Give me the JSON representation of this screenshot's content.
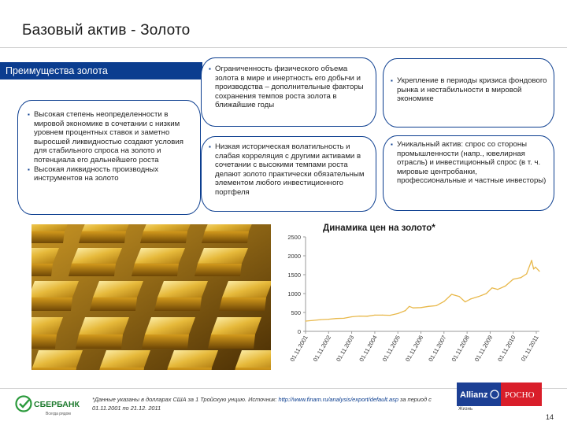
{
  "title": "Базовый актив - Золото",
  "advantages_tab": "Преимущества золота",
  "bubbles": {
    "b1": [
      "Высокая степень неопределенности в мировой экономике в сочетании с низким уровнем процентных ставок и заметно выросшей ликвидностью создают условия для стабильного спроса на золото и потенциала его дальнейшего роста",
      "Высокая ликвидность производных инструментов на золото"
    ],
    "b2": [
      "Ограниченность физического объема золота в мире и инертность его добычи и производства – дополнительные факторы сохранения темпов роста золота в ближайшие годы"
    ],
    "b3": [
      "Низкая историческая волатильность и слабая корреляция с другими активами в сочетании с высокими темпами роста делают золото практически обязательным элементом любого инвестиционного портфеля"
    ],
    "b4": [
      "Укрепление в периоды кризиса фондового рынка и нестабильности в мировой экономике"
    ],
    "b5": [
      "Уникальный актив: спрос со стороны промышленности (напр., ювелирная отрасль) и инвестиционный спрос (в т. ч. мировые центробанки, профессиональные и частные инвесторы)"
    ]
  },
  "chart_data": {
    "type": "line",
    "title": "Динамика цен на золото*",
    "xlabel": "",
    "ylabel": "",
    "ylim": [
      0,
      2500
    ],
    "yticks": [
      0,
      500,
      1000,
      1500,
      2000,
      2500
    ],
    "ytick_labels": [
      "0",
      "500",
      "1000",
      "1500",
      "2000",
      "2500"
    ],
    "xticks": [
      "01.11.2001",
      "01.11.2002",
      "01.11.2003",
      "01.11.2004",
      "01.11.2005",
      "01.11.2006",
      "01.11.2007",
      "01.11.2008",
      "01.11.2009",
      "01.11.2010",
      "01.11.2011"
    ],
    "grid": false,
    "line_color": "#e8b84a",
    "series": [
      {
        "x": [
          "2001-11-01",
          "2002-03-01",
          "2002-07-01",
          "2002-11-01",
          "2003-03-01",
          "2003-07-01",
          "2003-11-01",
          "2004-03-01",
          "2004-07-01",
          "2004-11-01",
          "2005-03-01",
          "2005-07-01",
          "2005-11-01",
          "2006-03-01",
          "2006-05-01",
          "2006-07-01",
          "2006-11-01",
          "2007-03-01",
          "2007-07-01",
          "2007-11-01",
          "2008-03-01",
          "2008-07-01",
          "2008-10-01",
          "2009-01-01",
          "2009-05-01",
          "2009-09-01",
          "2009-12-01",
          "2010-03-01",
          "2010-07-01",
          "2010-11-01",
          "2011-03-01",
          "2011-06-01",
          "2011-08-20",
          "2011-09-20",
          "2011-10-20",
          "2011-12-21"
        ],
        "values": [
          270,
          290,
          310,
          320,
          340,
          345,
          385,
          405,
          400,
          430,
          430,
          425,
          470,
          550,
          660,
          620,
          630,
          660,
          680,
          790,
          980,
          920,
          780,
          860,
          920,
          1000,
          1150,
          1110,
          1200,
          1380,
          1420,
          1520,
          1880,
          1650,
          1700,
          1590
        ]
      }
    ]
  },
  "footnote": {
    "text": "*Данные указаны в долларах США за 1 Тройскую унцию. Источник: ",
    "link": "http://www.finam.ru/analysis/export/default.asp",
    "tail": " за период с 01.11.2001 по 21.12. 2011"
  },
  "sberbank": {
    "name": "СБЕРБАНК",
    "slogan": "Всегда рядом"
  },
  "allianz": {
    "left": "Allianz",
    "right": "РОСНО",
    "sub": "Жизнь"
  },
  "page_number": "14"
}
